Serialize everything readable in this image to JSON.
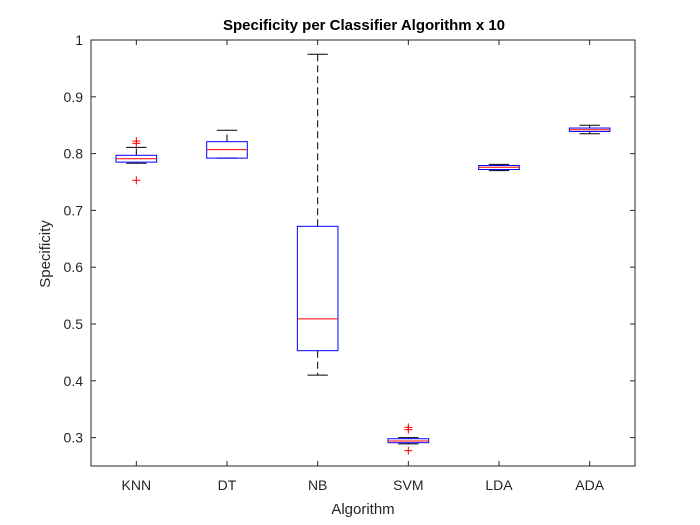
{
  "chart_data": {
    "type": "box",
    "title": "Specificity per Classifier Algorithm x 10",
    "xlabel": "Algorithm",
    "ylabel": "Specificity",
    "ylim": [
      0.25,
      1.0
    ],
    "yticks": [
      0.3,
      0.4,
      0.5,
      0.6,
      0.7,
      0.8,
      0.9,
      1
    ],
    "ytick_labels": [
      "0.3",
      "0.4",
      "0.5",
      "0.6",
      "0.7",
      "0.8",
      "0.9",
      "1"
    ],
    "grid": false,
    "categories": [
      "KNN",
      "DT",
      "NB",
      "SVM",
      "LDA",
      "ADA"
    ],
    "boxes": [
      {
        "name": "KNN",
        "whisker_low": 0.783,
        "q1": 0.785,
        "median": 0.791,
        "q3": 0.797,
        "whisker_high": 0.811,
        "outliers": [
          0.822,
          0.818,
          0.753
        ]
      },
      {
        "name": "DT",
        "whisker_low": 0.792,
        "q1": 0.792,
        "median": 0.807,
        "q3": 0.821,
        "whisker_high": 0.841,
        "outliers": []
      },
      {
        "name": "NB",
        "whisker_low": 0.41,
        "q1": 0.453,
        "median": 0.509,
        "q3": 0.672,
        "whisker_high": 0.975,
        "outliers": []
      },
      {
        "name": "SVM",
        "whisker_low": 0.289,
        "q1": 0.291,
        "median": 0.294,
        "q3": 0.298,
        "whisker_high": 0.3,
        "outliers": [
          0.318,
          0.314,
          0.277
        ]
      },
      {
        "name": "LDA",
        "whisker_low": 0.77,
        "q1": 0.772,
        "median": 0.776,
        "q3": 0.779,
        "whisker_high": 0.781,
        "outliers": []
      },
      {
        "name": "ADA",
        "whisker_low": 0.835,
        "q1": 0.839,
        "median": 0.842,
        "q3": 0.845,
        "whisker_high": 0.85,
        "outliers": []
      }
    ],
    "colors": {
      "box": "#0000ff",
      "median": "#ff0000",
      "whisker": "#000000",
      "outlier": "#ff0000",
      "axis": "#262626"
    }
  }
}
